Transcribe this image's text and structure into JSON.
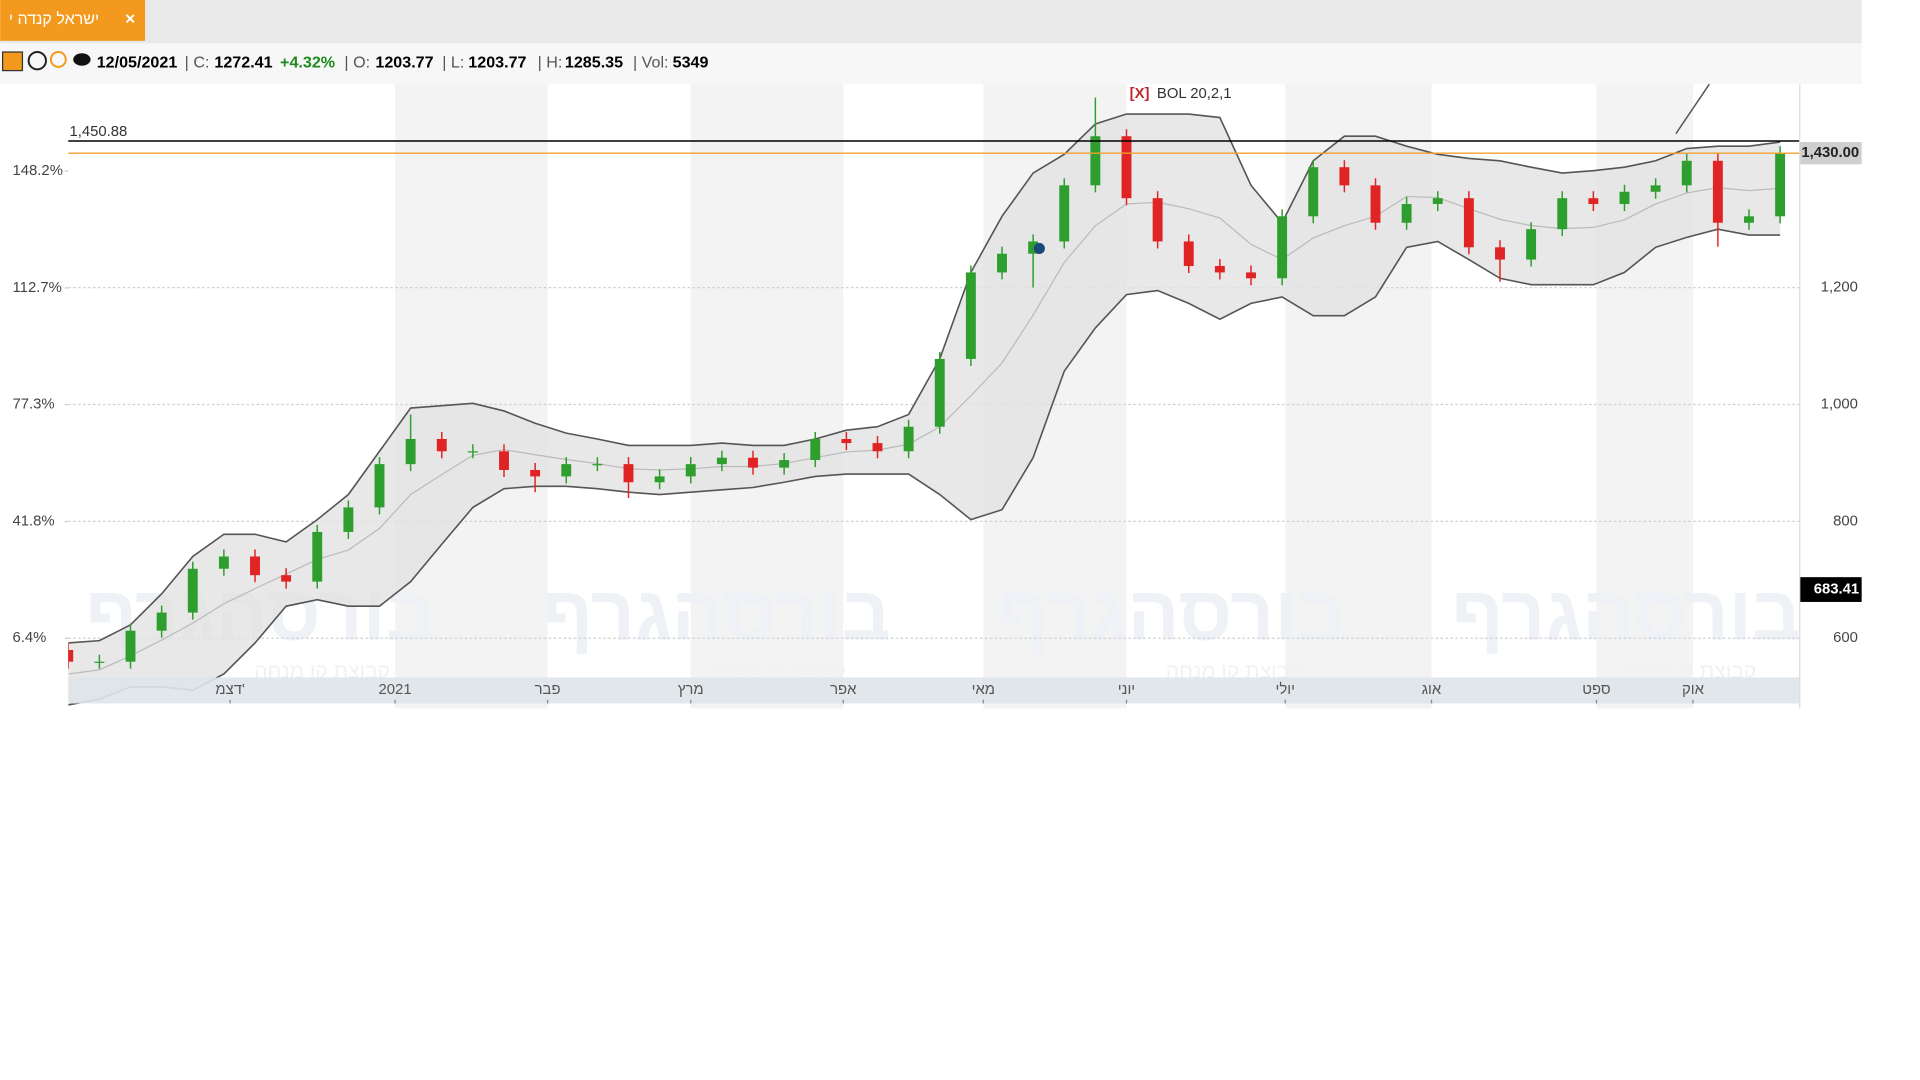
{
  "header": {
    "tab": "ישראל קנדה י",
    "close_button": "×"
  },
  "info": {
    "date": "12/05/2021",
    "c_label": "| C:",
    "c": 1272.41,
    "change": "+4.32%",
    "o_label": "| O:",
    "o": 1203.77,
    "l_label": "| L:",
    "l": 1203.77,
    "h_label": "| H:",
    "h": 1285.35,
    "vol_label": "| Vol:",
    "vol": 5349
  },
  "watermark": {
    "brand": "בורסהגרף",
    "sub": "קבוצת קו מנחה"
  },
  "chart_data": {
    "type": "candlestick",
    "indicator_close": "[X]",
    "indicator": "BOL 20,2,1",
    "categories": [
      null,
      null,
      null,
      null,
      null,
      null,
      null,
      null,
      null,
      null,
      null,
      null,
      null,
      null,
      null,
      null,
      null,
      null,
      null,
      null,
      null,
      null,
      null,
      null,
      null,
      null,
      null,
      null,
      null,
      null,
      null,
      null,
      null,
      null,
      null,
      null,
      null,
      null,
      null,
      null,
      null,
      null,
      null,
      null,
      null,
      null,
      null,
      null,
      null,
      null,
      null,
      null,
      null,
      null,
      null,
      null
    ],
    "open": [
      580,
      560,
      560,
      613,
      644,
      719,
      740,
      708,
      697,
      782,
      824,
      898,
      941,
      920,
      920,
      888,
      877,
      898,
      898,
      867,
      877,
      898,
      909,
      892,
      905,
      941,
      934,
      920,
      962,
      1078,
      1226,
      1258,
      1279,
      1375,
      1459,
      1353,
      1279,
      1237,
      1226,
      1216,
      1322,
      1406,
      1375,
      1311,
      1343,
      1353,
      1269,
      1248,
      1300,
      1353,
      1343,
      1364,
      1375,
      1417,
      1311,
      1322
    ],
    "high": [
      592,
      572,
      625,
      656,
      731,
      752,
      752,
      720,
      794,
      836,
      910,
      983,
      953,
      932,
      932,
      900,
      910,
      910,
      910,
      889,
      910,
      921,
      921,
      917,
      953,
      953,
      946,
      974,
      1090,
      1238,
      1270,
      1291,
      1387,
      1525,
      1471,
      1365,
      1291,
      1249,
      1238,
      1334,
      1418,
      1418,
      1387,
      1355,
      1365,
      1365,
      1281,
      1312,
      1365,
      1365,
      1376,
      1387,
      1429,
      1429,
      1334,
      1442
    ],
    "low": [
      548,
      548,
      548,
      601,
      632,
      707,
      696,
      685,
      685,
      770,
      812,
      886,
      908,
      908,
      876,
      850,
      865,
      886,
      840,
      855,
      865,
      886,
      880,
      880,
      893,
      922,
      908,
      908,
      950,
      1066,
      1214,
      1200,
      1267,
      1363,
      1341,
      1267,
      1225,
      1214,
      1204,
      1204,
      1310,
      1363,
      1299,
      1299,
      1331,
      1257,
      1210,
      1236,
      1288,
      1331,
      1331,
      1352,
      1363,
      1270,
      1299,
      1310
    ],
    "close": [
      560,
      560,
      613,
      644,
      719,
      740,
      708,
      697,
      782,
      824,
      898,
      941,
      920,
      920,
      888,
      877,
      898,
      898,
      867,
      877,
      898,
      909,
      892,
      905,
      941,
      934,
      920,
      962,
      1078,
      1226,
      1258,
      1279,
      1375,
      1459,
      1353,
      1279,
      1237,
      1226,
      1216,
      1322,
      1406,
      1375,
      1311,
      1343,
      1353,
      1269,
      1248,
      1300,
      1353,
      1343,
      1364,
      1375,
      1417,
      1311,
      1322,
      1430
    ],
    "up_color": "#2e9e2e",
    "down_color": "#e02424",
    "bollinger": {
      "color": "#555555",
      "middle_color": "#bbbbbb",
      "fill": "#e2e2e2",
      "upper": [
        592,
        596,
        623,
        676,
        740,
        778,
        778,
        765,
        803,
        846,
        920,
        994,
        998,
        1002,
        989,
        968,
        951,
        941,
        930,
        930,
        930,
        934,
        930,
        930,
        941,
        956,
        962,
        983,
        1078,
        1226,
        1322,
        1396,
        1428,
        1480,
        1497,
        1497,
        1497,
        1491,
        1375,
        1311,
        1417,
        1459,
        1459,
        1442,
        1428,
        1421,
        1417,
        1406,
        1396,
        1400,
        1406,
        1417,
        1438,
        1442,
        1442,
        1449
      ],
      "middle": [
        539,
        546,
        570,
        597,
        626,
        659,
        685,
        710,
        735,
        751,
        788,
        846,
        880,
        913,
        923,
        914,
        906,
        899,
        890,
        888,
        890,
        894,
        894,
        899,
        909,
        919,
        922,
        932,
        962,
        1015,
        1071,
        1153,
        1243,
        1306,
        1343,
        1346,
        1335,
        1319,
        1274,
        1248,
        1285,
        1306,
        1322,
        1356,
        1354,
        1335,
        1317,
        1306,
        1301,
        1303,
        1316,
        1343,
        1362,
        1371,
        1366,
        1370
      ],
      "lower": [
        486,
        496,
        517,
        517,
        511,
        539,
        592,
        655,
        666,
        655,
        655,
        697,
        761,
        824,
        856,
        860,
        860,
        856,
        850,
        846,
        850,
        854,
        858,
        867,
        877,
        881,
        881,
        881,
        846,
        803,
        820,
        909,
        1057,
        1131,
        1188,
        1195,
        1173,
        1146,
        1173,
        1184,
        1152,
        1152,
        1184,
        1269,
        1279,
        1248,
        1216,
        1205,
        1205,
        1205,
        1226,
        1269,
        1286,
        1300,
        1290,
        1290
      ]
    },
    "hlines": [
      {
        "value": 1450.88,
        "label": "1,450.88",
        "color": "#000000"
      },
      {
        "value": 1430,
        "color": "#f0a030"
      }
    ],
    "last_price": {
      "value": 1430,
      "label": "1,430.00"
    },
    "base_price": {
      "value": 683.41,
      "label": "683.41"
    },
    "events": [
      {
        "x": 31.2,
        "value": 1267,
        "color": "#1a4a7a"
      }
    ],
    "xlim": [
      0,
      55.63
    ],
    "xticks": [
      {
        "value": 5.2,
        "label": "דצמ'"
      },
      {
        "value": 10.5,
        "label": "2021"
      },
      {
        "value": 15.4,
        "label": "פבר"
      },
      {
        "value": 20,
        "label": "מרץ"
      },
      {
        "value": 24.9,
        "label": "אפר"
      },
      {
        "value": 29.4,
        "label": "מאי"
      },
      {
        "value": 34,
        "label": "יוני"
      },
      {
        "value": 39.1,
        "label": "יולי"
      },
      {
        "value": 43.8,
        "label": "אוג"
      },
      {
        "value": 49.1,
        "label": "ספט"
      },
      {
        "value": 52.2,
        "label": "אוק"
      }
    ],
    "ylim": [
      480,
      1548
    ],
    "yticks": [
      600,
      800,
      {
        "value": 1000,
        "label": "1,000"
      },
      {
        "value": 1200,
        "label": "1,200"
      }
    ],
    "y2lim": [
      -14.9,
      174.5
    ],
    "y2ticks": [
      {
        "value": 6.4,
        "label": "6.4%"
      },
      {
        "value": 41.8,
        "label": "41.8%"
      },
      {
        "value": 77.3,
        "label": "77.3%"
      },
      {
        "value": 112.7,
        "label": "112.7%"
      },
      {
        "value": 148.2,
        "label": "148.2%"
      }
    ],
    "grid": true
  }
}
